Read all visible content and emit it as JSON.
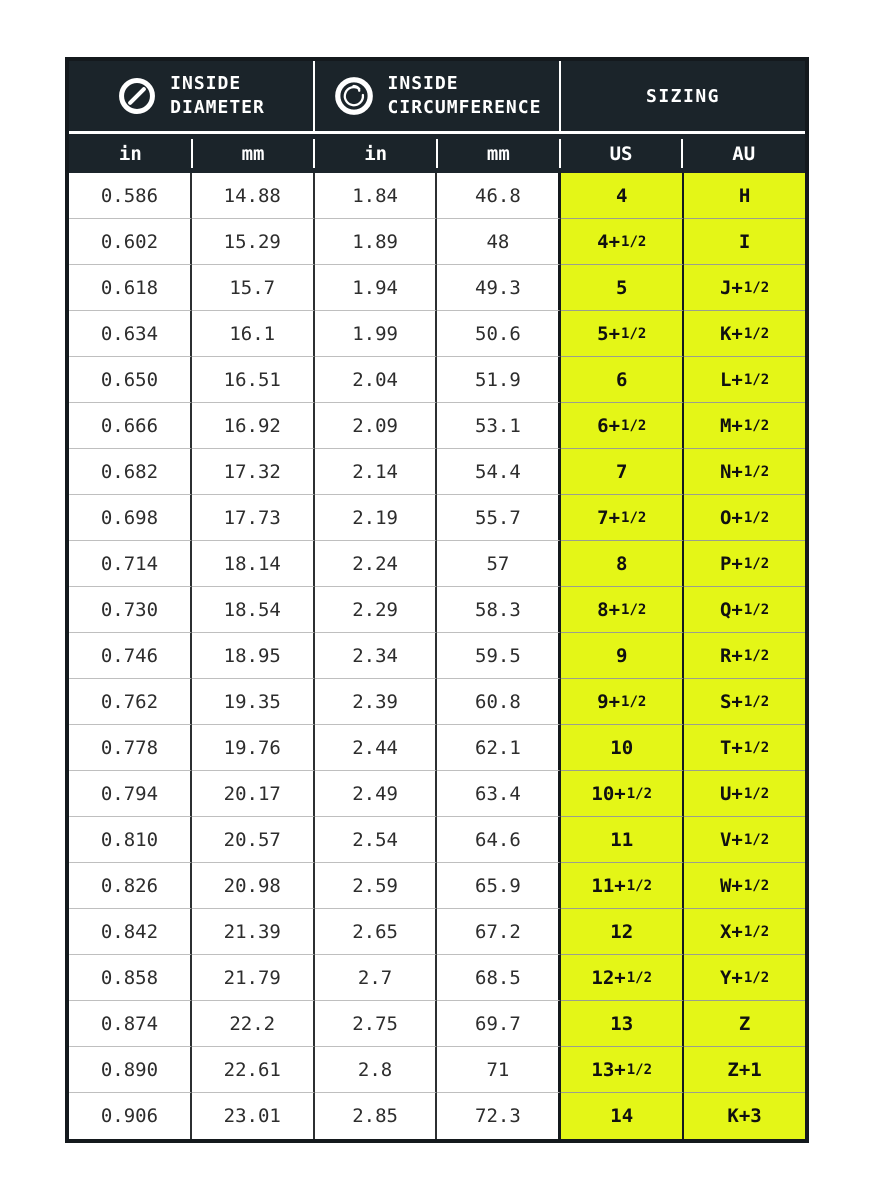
{
  "table": {
    "colors": {
      "header_bg": "#1b242a",
      "header_text": "#ffffff",
      "highlight_bg": "#e4f617",
      "outer_border": "#14191d",
      "body_text": "#2d2d2d"
    },
    "header_groups": [
      {
        "line1": "INSIDE",
        "line2": "DIAMETER",
        "icon": "diameter-icon"
      },
      {
        "line1": "INSIDE",
        "line2": "CIRCUMFERENCE",
        "icon": "circumference-icon"
      },
      {
        "label": "SIZING"
      }
    ],
    "columns": [
      "in",
      "mm",
      "in",
      "mm",
      "US",
      "AU"
    ],
    "rows": [
      [
        "0.586",
        "14.88",
        "1.84",
        "46.8",
        "4",
        "H"
      ],
      [
        "0.602",
        "15.29",
        "1.89",
        "48",
        "4+1/2",
        "I"
      ],
      [
        "0.618",
        "15.7",
        "1.94",
        "49.3",
        "5",
        "J+1/2"
      ],
      [
        "0.634",
        "16.1",
        "1.99",
        "50.6",
        "5+1/2",
        "K+1/2"
      ],
      [
        "0.650",
        "16.51",
        "2.04",
        "51.9",
        "6",
        "L+1/2"
      ],
      [
        "0.666",
        "16.92",
        "2.09",
        "53.1",
        "6+1/2",
        "M+1/2"
      ],
      [
        "0.682",
        "17.32",
        "2.14",
        "54.4",
        "7",
        "N+1/2"
      ],
      [
        "0.698",
        "17.73",
        "2.19",
        "55.7",
        "7+1/2",
        "O+1/2"
      ],
      [
        "0.714",
        "18.14",
        "2.24",
        "57",
        "8",
        "P+1/2"
      ],
      [
        "0.730",
        "18.54",
        "2.29",
        "58.3",
        "8+1/2",
        "Q+1/2"
      ],
      [
        "0.746",
        "18.95",
        "2.34",
        "59.5",
        "9",
        "R+1/2"
      ],
      [
        "0.762",
        "19.35",
        "2.39",
        "60.8",
        "9+1/2",
        "S+1/2"
      ],
      [
        "0.778",
        "19.76",
        "2.44",
        "62.1",
        "10",
        "T+1/2"
      ],
      [
        "0.794",
        "20.17",
        "2.49",
        "63.4",
        "10+1/2",
        "U+1/2"
      ],
      [
        "0.810",
        "20.57",
        "2.54",
        "64.6",
        "11",
        "V+1/2"
      ],
      [
        "0.826",
        "20.98",
        "2.59",
        "65.9",
        "11+1/2",
        "W+1/2"
      ],
      [
        "0.842",
        "21.39",
        "2.65",
        "67.2",
        "12",
        "X+1/2"
      ],
      [
        "0.858",
        "21.79",
        "2.7",
        "68.5",
        "12+1/2",
        "Y+1/2"
      ],
      [
        "0.874",
        "22.2",
        "2.75",
        "69.7",
        "13",
        "Z"
      ],
      [
        "0.890",
        "22.61",
        "2.8",
        "71",
        "13+1/2",
        "Z+1"
      ],
      [
        "0.906",
        "23.01",
        "2.85",
        "72.3",
        "14",
        "K+3"
      ]
    ]
  }
}
